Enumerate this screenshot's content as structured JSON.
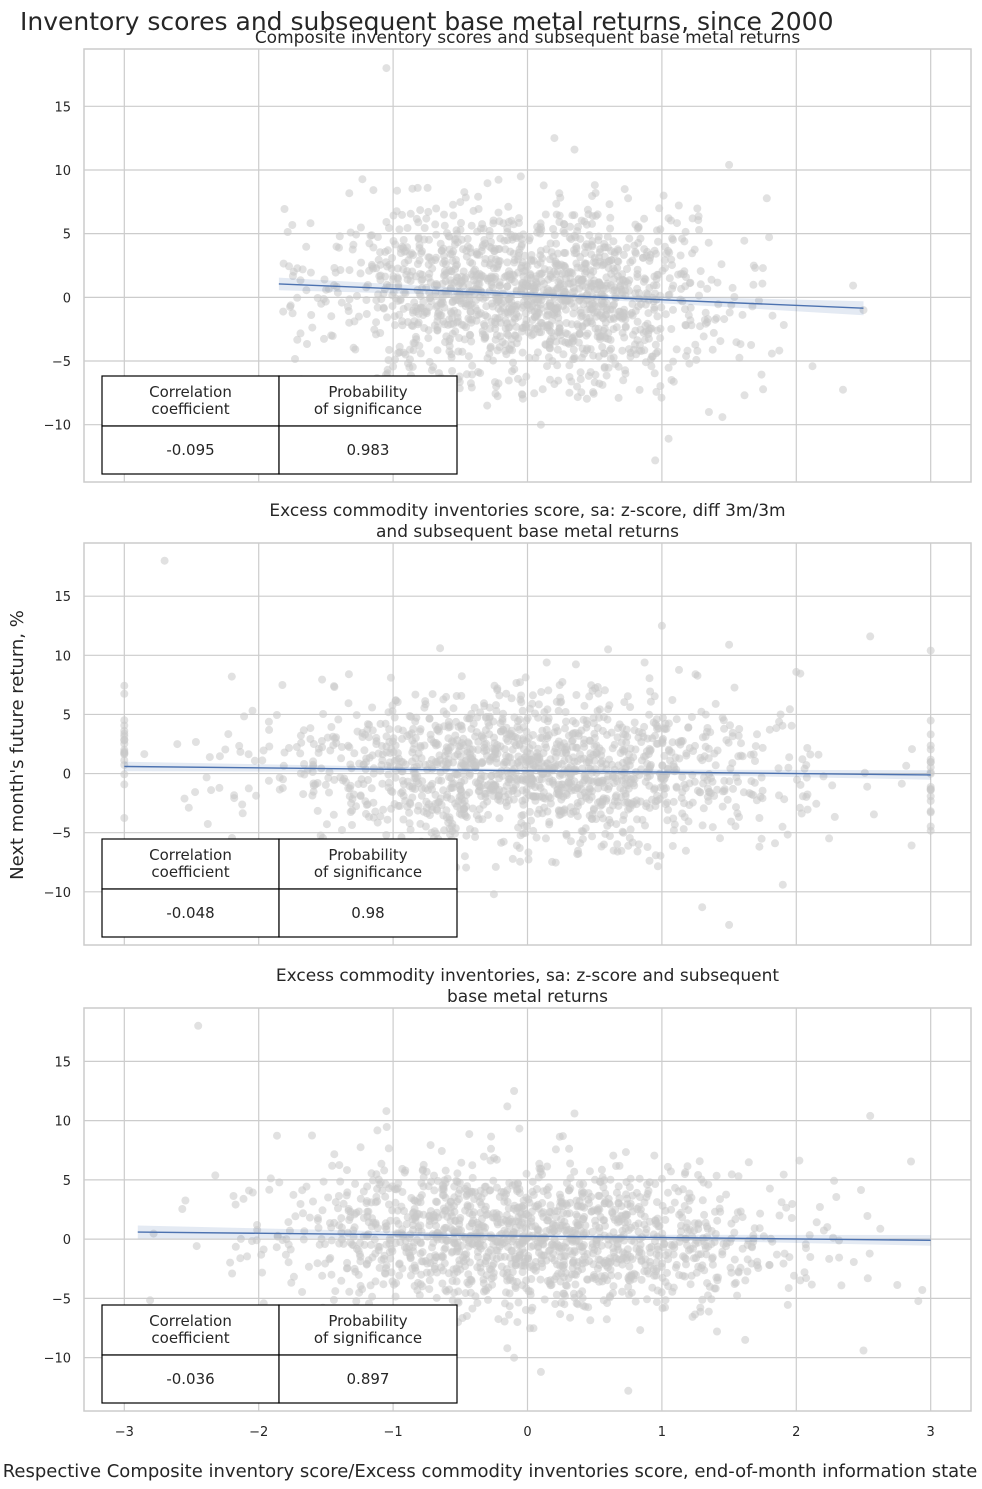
{
  "figure": {
    "suptitle": "Inventory scores and subsequent base metal returns, since 2000",
    "ylabel": "Next month's future return, %",
    "xlabel": "Respective Composite inventory score/Excess commodity inventories score, end-of-month information state"
  },
  "colors": {
    "points": "#c8c8c8",
    "regression": "#4c72b0",
    "grid": "#cccccc"
  },
  "chart_data": [
    {
      "type": "scatter",
      "title_lines": [
        "Composite inventory scores and subsequent base metal returns"
      ],
      "xlim": [
        -3.3,
        3.3
      ],
      "ylim": [
        -14.5,
        19.5
      ],
      "xticks": [
        -3,
        -2,
        -1,
        0,
        1,
        2,
        3
      ],
      "xtick_labels": [
        "−3",
        "−2",
        "−1",
        "0",
        "1",
        "2",
        "3"
      ],
      "show_xtick_labels": false,
      "yticks": [
        -10,
        -5,
        0,
        5,
        10,
        15
      ],
      "ytick_labels": [
        "−10",
        "−5",
        "0",
        "5",
        "10",
        "15"
      ],
      "regression": {
        "x": [
          -1.85,
          2.5
        ],
        "y": [
          1.05,
          -0.85
        ],
        "ci": [
          0.5,
          0.15,
          0.55
        ]
      },
      "scatter": {
        "n": 1500,
        "x_mean": 0.0,
        "x_sd": 0.75,
        "x_min": -1.85,
        "x_max": 2.5,
        "y_sd": 3.4,
        "seed": 11,
        "outliers": [
          [
            -1.05,
            18.0
          ],
          [
            -0.05,
            9.5
          ],
          [
            0.2,
            12.5
          ],
          [
            0.35,
            11.6
          ],
          [
            1.5,
            10.4
          ],
          [
            0.95,
            -12.8
          ],
          [
            0.1,
            -10.0
          ],
          [
            1.45,
            -9.4
          ],
          [
            1.35,
            -9.0
          ],
          [
            -0.3,
            -8.5
          ],
          [
            1.05,
            -11.1
          ],
          [
            2.5,
            -1.0
          ]
        ]
      },
      "table": {
        "headers": [
          [
            "Correlation",
            "coefficient"
          ],
          [
            "Probability",
            "of significance"
          ]
        ],
        "values": [
          "-0.095",
          "0.983"
        ]
      }
    },
    {
      "type": "scatter",
      "title_lines": [
        "Excess commodity inventories score, sa: z-score, diff 3m/3m",
        "and subsequent base metal returns"
      ],
      "xlim": [
        -3.3,
        3.3
      ],
      "ylim": [
        -14.5,
        19.5
      ],
      "xticks": [
        -3,
        -2,
        -1,
        0,
        1,
        2,
        3
      ],
      "xtick_labels": [
        "−3",
        "−2",
        "−1",
        "0",
        "1",
        "2",
        "3"
      ],
      "show_xtick_labels": false,
      "yticks": [
        -10,
        -5,
        0,
        5,
        10,
        15
      ],
      "ytick_labels": [
        "−10",
        "−5",
        "0",
        "5",
        "10",
        "15"
      ],
      "regression": {
        "x": [
          -3.0,
          3.0
        ],
        "y": [
          0.6,
          -0.12
        ],
        "ci": [
          0.4,
          0.12,
          0.4
        ]
      },
      "scatter": {
        "n": 1500,
        "x_mean": 0.0,
        "x_sd": 1.0,
        "x_min": -3.0,
        "x_max": 3.0,
        "y_sd": 3.1,
        "seed": 23,
        "clip_count": 40,
        "outliers": [
          [
            -2.7,
            18.0
          ],
          [
            1.0,
            12.5
          ],
          [
            2.55,
            11.6
          ],
          [
            1.5,
            10.9
          ],
          [
            -0.65,
            10.6
          ],
          [
            0.6,
            10.5
          ],
          [
            -2.2,
            8.2
          ],
          [
            1.25,
            8.4
          ],
          [
            2.0,
            8.6
          ],
          [
            -0.25,
            -10.2
          ],
          [
            1.5,
            -12.8
          ],
          [
            1.3,
            -11.3
          ],
          [
            1.9,
            -9.4
          ],
          [
            3.0,
            10.4
          ]
        ]
      },
      "table": {
        "headers": [
          [
            "Correlation",
            "coefficient"
          ],
          [
            "Probability",
            "of significance"
          ]
        ],
        "values": [
          "-0.048",
          "0.98"
        ]
      }
    },
    {
      "type": "scatter",
      "title_lines": [
        "Excess commodity inventories, sa: z-score and subsequent",
        "base metal returns"
      ],
      "xlim": [
        -3.3,
        3.3
      ],
      "ylim": [
        -14.5,
        19.5
      ],
      "xticks": [
        -3,
        -2,
        -1,
        0,
        1,
        2,
        3
      ],
      "xtick_labels": [
        "−3",
        "−2",
        "−1",
        "0",
        "1",
        "2",
        "3"
      ],
      "show_xtick_labels": true,
      "yticks": [
        -10,
        -5,
        0,
        5,
        10,
        15
      ],
      "ytick_labels": [
        "−10",
        "−5",
        "0",
        "5",
        "10",
        "15"
      ],
      "regression": {
        "x": [
          -2.9,
          3.0
        ],
        "y": [
          0.6,
          -0.1
        ],
        "ci": [
          0.55,
          0.12,
          0.45
        ]
      },
      "scatter": {
        "n": 1500,
        "x_mean": 0.0,
        "x_sd": 0.95,
        "x_min": -2.9,
        "x_max": 3.0,
        "y_sd": 3.2,
        "seed": 37,
        "outliers": [
          [
            -2.45,
            18.0
          ],
          [
            -0.1,
            12.5
          ],
          [
            -0.15,
            11.2
          ],
          [
            0.35,
            10.6
          ],
          [
            2.55,
            10.4
          ],
          [
            -1.05,
            10.8
          ],
          [
            0.75,
            -12.8
          ],
          [
            0.1,
            -11.2
          ],
          [
            -0.1,
            -10.0
          ],
          [
            -0.15,
            -9.2
          ],
          [
            2.5,
            -9.4
          ],
          [
            1.62,
            -8.5
          ]
        ]
      },
      "table": {
        "headers": [
          [
            "Correlation",
            "coefficient"
          ],
          [
            "Probability",
            "of significance"
          ]
        ],
        "values": [
          "-0.036",
          "0.897"
        ]
      }
    }
  ]
}
